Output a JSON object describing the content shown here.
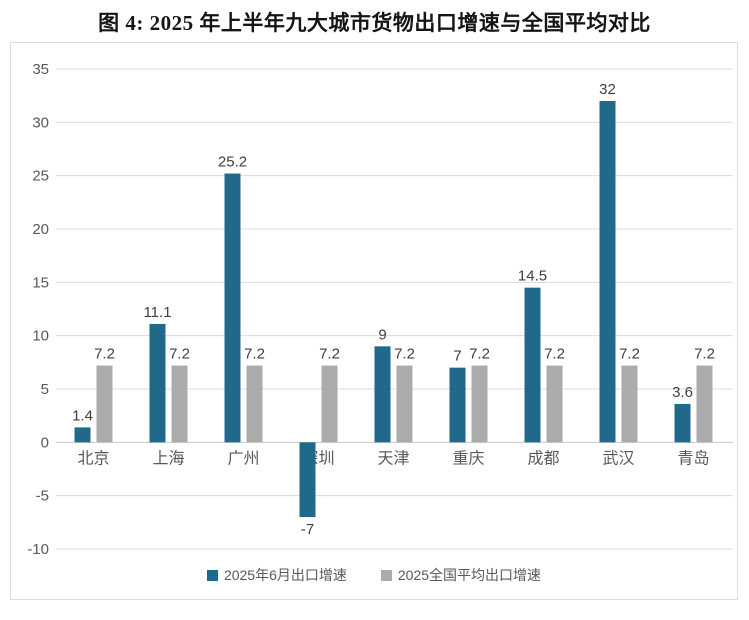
{
  "title": "图 4: 2025 年上半年九大城市货物出口增速与全国平均对比",
  "chart_data": {
    "type": "bar",
    "title": "图 4: 2025 年上半年九大城市货物出口增速与全国平均对比",
    "categories": [
      "北京",
      "上海",
      "广州",
      "深圳",
      "天津",
      "重庆",
      "成都",
      "武汉",
      "青岛"
    ],
    "series": [
      {
        "name": "2025年6月出口增速",
        "color": "#20698B",
        "values": [
          1.4,
          11.1,
          25.2,
          -7,
          9,
          7,
          14.5,
          32,
          3.6
        ]
      },
      {
        "name": "2025全国平均出口增速",
        "color": "#ABABAB",
        "values": [
          7.2,
          7.2,
          7.2,
          7.2,
          7.2,
          7.2,
          7.2,
          7.2,
          7.2
        ]
      }
    ],
    "ylim": [
      -10,
      35
    ],
    "yticks": [
      35,
      30,
      25,
      20,
      15,
      10,
      5,
      0,
      -5,
      -10
    ],
    "xlabel": "",
    "ylabel": "",
    "grid": true,
    "legend_position": "bottom"
  },
  "style": {
    "gridline_color": "#dcdcdc",
    "zeroline_color": "#c9c9c9",
    "tick_label_color": "#595959",
    "value_label_color": "#3f3f3f"
  }
}
